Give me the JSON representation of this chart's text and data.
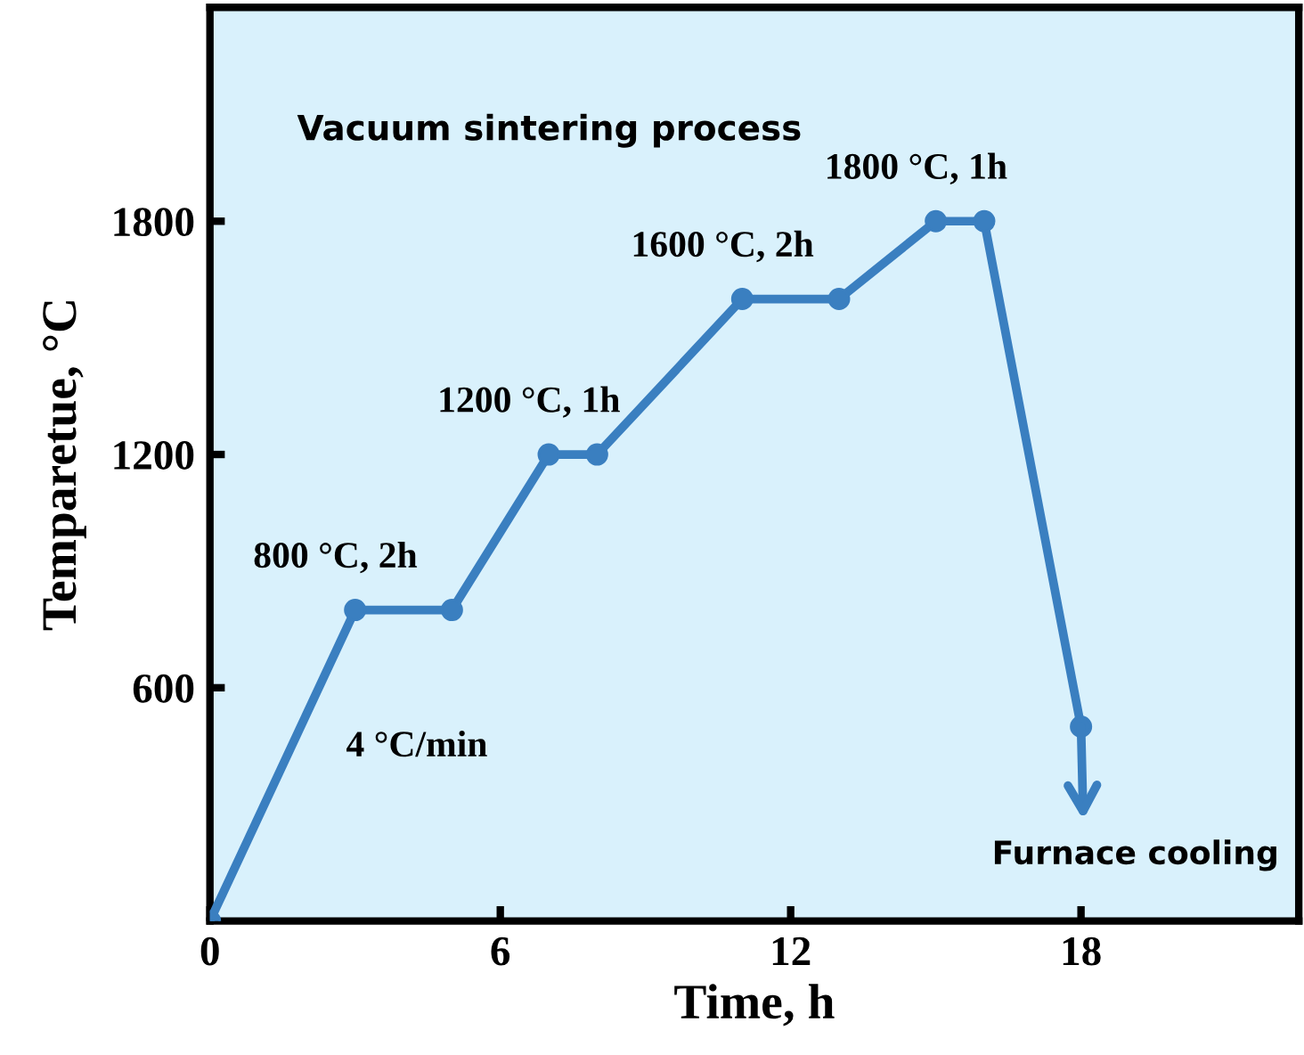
{
  "chart_data": {
    "type": "line",
    "title": "Vacuum sintering process",
    "xlabel": "Time, h",
    "ylabel": "Temparetue, °C",
    "x": [
      0,
      3,
      5,
      7,
      8,
      11,
      13,
      15,
      16,
      18
    ],
    "series": [
      {
        "color": "#3a7fc0",
        "values": [
          0,
          800,
          800,
          1200,
          1200,
          1600,
          1600,
          1800,
          1800,
          500
        ]
      }
    ],
    "xlim": [
      0,
      22.5
    ],
    "ylim": [
      0,
      2350
    ],
    "xticks": [
      0,
      6,
      12,
      18
    ],
    "yticks": [
      600,
      1200,
      1800
    ],
    "marker": "circle",
    "grid": false,
    "legend": false,
    "annotations": [
      {
        "text": "800 °C, 2h",
        "x": 3,
        "y": 800
      },
      {
        "text": "1200 °C, 1h",
        "x": 7,
        "y": 1200
      },
      {
        "text": "1600 °C, 2h",
        "x": 11,
        "y": 1600
      },
      {
        "text": "1800 °C, 1h",
        "x": 15,
        "y": 1800
      },
      "4 °C/min",
      {
        "text": "Furnace cooling",
        "x": 18,
        "y": 500
      }
    ]
  }
}
